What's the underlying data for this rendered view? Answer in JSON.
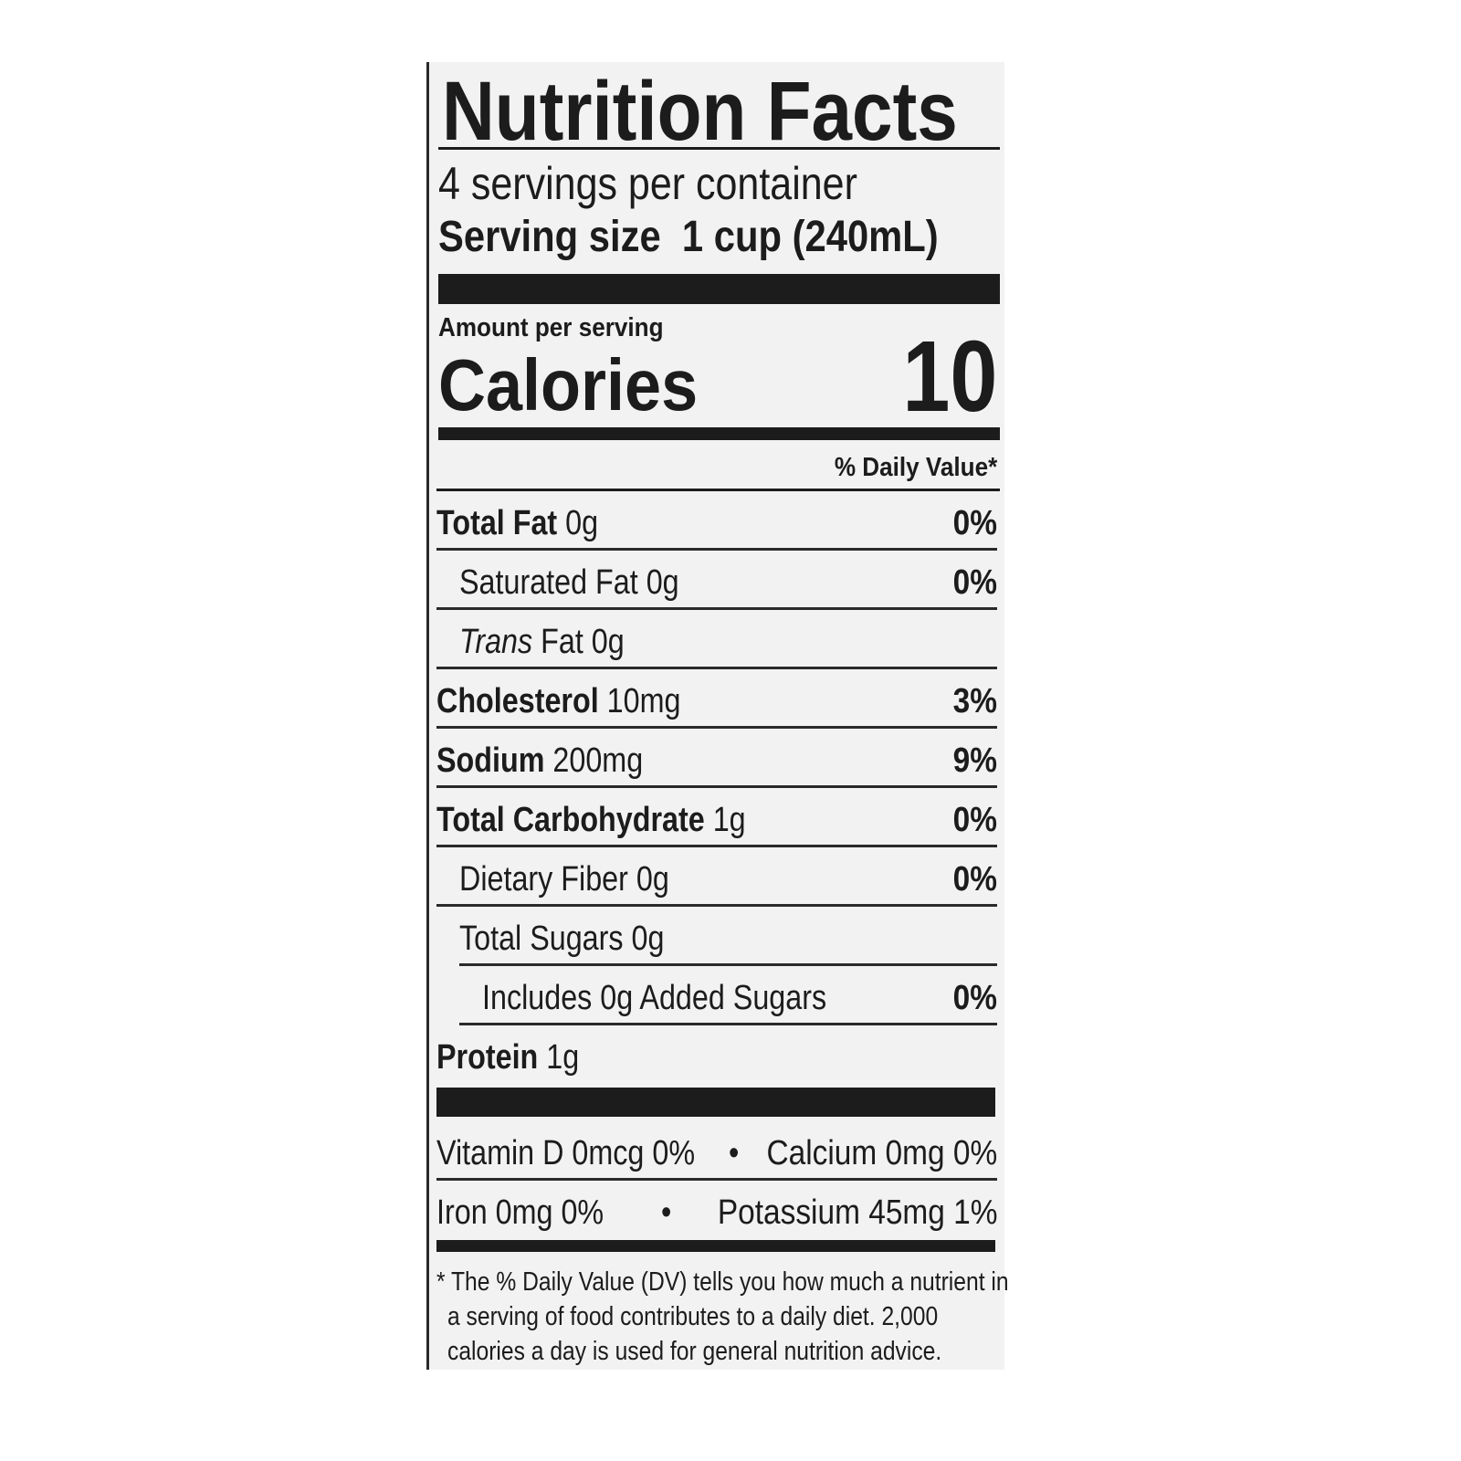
{
  "label": {
    "title": "Nutrition Facts",
    "servings_per_container": "4 servings per container",
    "serving_size_label": "Serving size",
    "serving_size_value": "1 cup (240mL)",
    "amount_per_serving": "Amount per serving",
    "calories_label": "Calories",
    "calories_value": "10",
    "daily_value_header": "% Daily Value*",
    "nutrients": [
      {
        "name": "Total Fat",
        "amount": "0g",
        "dv": "0%",
        "bold": true,
        "indent": 0
      },
      {
        "name": "Saturated Fat",
        "amount": "0g",
        "dv": "0%",
        "bold": false,
        "indent": 1
      },
      {
        "name": "Trans",
        "suffix": "Fat",
        "amount": "0g",
        "dv": "",
        "bold": false,
        "indent": 1,
        "italic_prefix": true
      },
      {
        "name": "Cholesterol",
        "amount": "10mg",
        "dv": "3%",
        "bold": true,
        "indent": 0
      },
      {
        "name": "Sodium",
        "amount": "200mg",
        "dv": "9%",
        "bold": true,
        "indent": 0
      },
      {
        "name": "Total Carbohydrate",
        "amount": "1g",
        "dv": "0%",
        "bold": true,
        "indent": 0
      },
      {
        "name": "Dietary Fiber",
        "amount": "0g",
        "dv": "0%",
        "bold": false,
        "indent": 1
      },
      {
        "name": "Total Sugars",
        "amount": "0g",
        "dv": "",
        "bold": false,
        "indent": 1
      },
      {
        "name": "Includes 0g Added Sugars",
        "amount": "",
        "dv": "0%",
        "bold": false,
        "indent": 2
      },
      {
        "name": "Protein",
        "amount": "1g",
        "dv": "",
        "bold": true,
        "indent": 0
      }
    ],
    "micros": [
      {
        "left": "Vitamin D 0mcg 0%",
        "right": "Calcium 0mg 0%"
      },
      {
        "left": "Iron 0mg 0%",
        "right": "Potassium 45mg 1%"
      }
    ],
    "bullet": "•",
    "footnote": [
      "* The % Daily Value (DV) tells you how much a nutrient in",
      "a serving of food contributes to a daily diet. 2,000",
      "calories a day is used for general nutrition advice."
    ]
  }
}
